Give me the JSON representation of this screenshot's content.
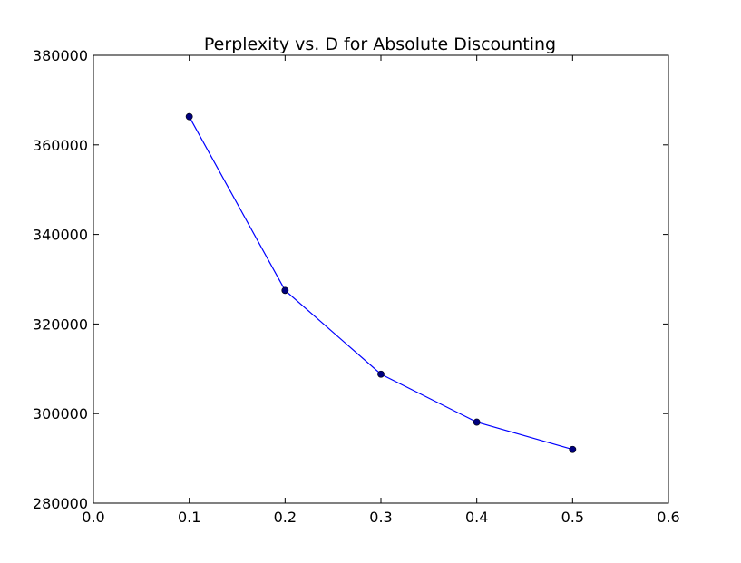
{
  "chart_data": {
    "type": "line",
    "title": "Perplexity vs. D for Absolute Discounting",
    "xlabel": "",
    "ylabel": "",
    "xlim": [
      0.0,
      0.6
    ],
    "ylim": [
      280000,
      380000
    ],
    "x_ticks": [
      0.0,
      0.1,
      0.2,
      0.3,
      0.4,
      0.5,
      0.6
    ],
    "x_tick_labels": [
      "0.0",
      "0.1",
      "0.2",
      "0.3",
      "0.4",
      "0.5",
      "0.6"
    ],
    "y_ticks": [
      280000,
      300000,
      320000,
      340000,
      360000,
      380000
    ],
    "y_tick_labels": [
      "280000",
      "300000",
      "320000",
      "340000",
      "360000",
      "380000"
    ],
    "grid": false,
    "series": [
      {
        "color": "#0000ff",
        "marker_color": "#00007f",
        "x": [
          0.1,
          0.2,
          0.3,
          0.4,
          0.5
        ],
        "y": [
          366300,
          327500,
          308800,
          298100,
          292000
        ]
      }
    ]
  }
}
